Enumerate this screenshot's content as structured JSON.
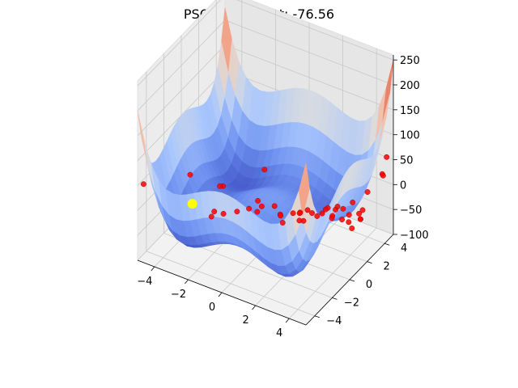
{
  "chart_data": {
    "type": "scatter",
    "projection": "3d-surface",
    "title": "PSO 1/100 Best: -76.56",
    "xlabel": "",
    "ylabel": "",
    "zlabel": "",
    "x_ticks": [
      -4,
      -2,
      0,
      2,
      4
    ],
    "y_ticks": [
      -4,
      -2,
      0,
      2,
      4
    ],
    "z_ticks": [
      -100,
      -50,
      0,
      50,
      100,
      150,
      200,
      250
    ],
    "xlim": [
      -5,
      5
    ],
    "ylim": [
      -5,
      5
    ],
    "zlim": [
      -100,
      260
    ],
    "surface_colormap": "coolwarm",
    "surface_colors": {
      "low": "#3b4cc0",
      "mid": "#dddddd",
      "high": "#b40426"
    },
    "grid": true,
    "best_point": {
      "x": -4.5,
      "y": 0.3,
      "z": -76.56,
      "color": "#ffff00"
    },
    "particle_color": "#ff0000",
    "particles": [
      [
        -4.8,
        -4.7,
        50
      ],
      [
        -3.2,
        0.3,
        -75
      ],
      [
        -3.0,
        -0.4,
        -70
      ],
      [
        -2.6,
        0.2,
        -70
      ],
      [
        -2.0,
        0.6,
        -65
      ],
      [
        -1.5,
        1.0,
        -60
      ],
      [
        -1.0,
        1.5,
        -58
      ],
      [
        -0.5,
        2.0,
        -60
      ],
      [
        0.5,
        3.0,
        -78
      ],
      [
        1.0,
        3.4,
        -80
      ],
      [
        1.5,
        3.6,
        -78
      ],
      [
        2.0,
        3.8,
        -80
      ],
      [
        1.2,
        2.5,
        -55
      ],
      [
        2.2,
        2.9,
        -45
      ],
      [
        2.8,
        2.2,
        -45
      ],
      [
        3.3,
        2.4,
        -45
      ],
      [
        3.8,
        2.2,
        -40
      ],
      [
        4.4,
        2.4,
        -30
      ],
      [
        4.2,
        1.8,
        -40
      ],
      [
        4.6,
        2.0,
        -20
      ],
      [
        4.0,
        3.0,
        -35
      ],
      [
        3.0,
        3.1,
        -40
      ],
      [
        2.5,
        3.2,
        -50
      ],
      [
        0.2,
        1.3,
        -55
      ],
      [
        -0.8,
        0.6,
        -50
      ],
      [
        -1.9,
        -1.2,
        20
      ],
      [
        -1.2,
        -2.9,
        60
      ],
      [
        -3.8,
        -1.3,
        20
      ],
      [
        1.8,
        -1.5,
        0
      ],
      [
        1.0,
        -0.2,
        -20
      ],
      [
        2.0,
        0.5,
        -30
      ],
      [
        1.6,
        0.8,
        -40
      ],
      [
        2.6,
        0.9,
        -20
      ],
      [
        2.9,
        1.3,
        -10
      ],
      [
        3.5,
        1.5,
        0
      ],
      [
        4.4,
        1.5,
        20
      ],
      [
        4.4,
        3.2,
        10
      ],
      [
        4.6,
        4.5,
        25
      ],
      [
        4.6,
        4.6,
        20
      ],
      [
        4.6,
        5.0,
        50
      ],
      [
        1.5,
        -3.0,
        130
      ],
      [
        0.6,
        2.0,
        -60
      ],
      [
        -0.4,
        -0.1,
        -10
      ],
      [
        1.2,
        1.6,
        -45
      ],
      [
        3.2,
        3.4,
        -55
      ],
      [
        3.9,
        3.6,
        -40
      ]
    ]
  }
}
